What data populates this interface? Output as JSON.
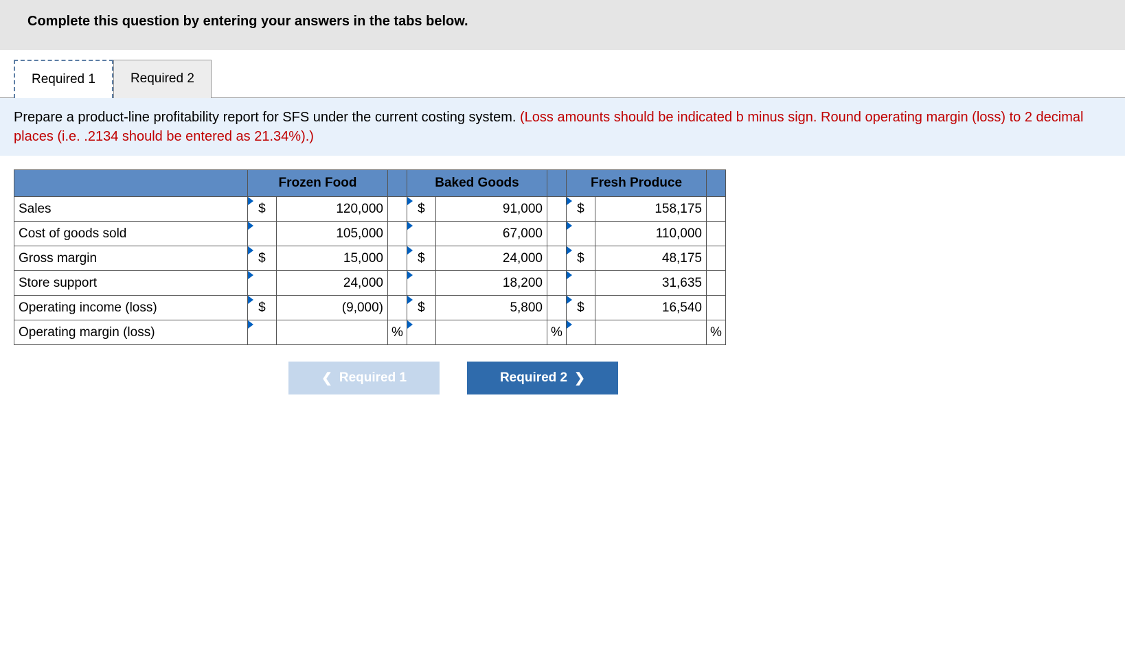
{
  "header": {
    "title": "Complete this question by entering your answers in the tabs below."
  },
  "tabs": [
    {
      "label": "Required 1",
      "active": true
    },
    {
      "label": "Required 2",
      "active": false
    }
  ],
  "instruction": {
    "black": "Prepare a product-line profitability report for SFS under the current costing system. ",
    "red": "(Loss amounts should be indicated b minus sign. Round operating margin (loss) to 2 decimal places (i.e. .2134 should be entered as 21.34%).)"
  },
  "table": {
    "columns": [
      "Frozen Food",
      "Baked Goods",
      "Fresh Produce"
    ],
    "rows": [
      {
        "label": "Sales",
        "c": [
          "$",
          "$",
          "$"
        ],
        "v": [
          "120,000",
          "91,000",
          "158,175"
        ],
        "u": [
          "",
          "",
          ""
        ]
      },
      {
        "label": "Cost of goods sold",
        "c": [
          "",
          "",
          ""
        ],
        "v": [
          "105,000",
          "67,000",
          "110,000"
        ],
        "u": [
          "",
          "",
          ""
        ]
      },
      {
        "label": "Gross margin",
        "c": [
          "$",
          "$",
          "$"
        ],
        "v": [
          "15,000",
          "24,000",
          "48,175"
        ],
        "u": [
          "",
          "",
          ""
        ]
      },
      {
        "label": "Store support",
        "c": [
          "",
          "",
          ""
        ],
        "v": [
          "24,000",
          "18,200",
          "31,635"
        ],
        "u": [
          "",
          "",
          ""
        ]
      },
      {
        "label": "Operating income (loss)",
        "c": [
          "$",
          "$",
          "$"
        ],
        "v": [
          "(9,000)",
          "5,800",
          "16,540"
        ],
        "u": [
          "",
          "",
          ""
        ]
      },
      {
        "label": "Operating margin (loss)",
        "c": [
          "",
          "",
          ""
        ],
        "v": [
          "",
          "",
          ""
        ],
        "u": [
          "%",
          "%",
          "%"
        ]
      }
    ],
    "col_widths": {
      "label": 340,
      "currency": 36,
      "value": 140,
      "unit": 28
    },
    "header_bg": "#5d8bc4",
    "border_color": "#555555",
    "marker_color": "#0060c0"
  },
  "nav": {
    "prev": {
      "label": "Required 1",
      "enabled": false
    },
    "next": {
      "label": "Required 2",
      "enabled": true
    }
  }
}
